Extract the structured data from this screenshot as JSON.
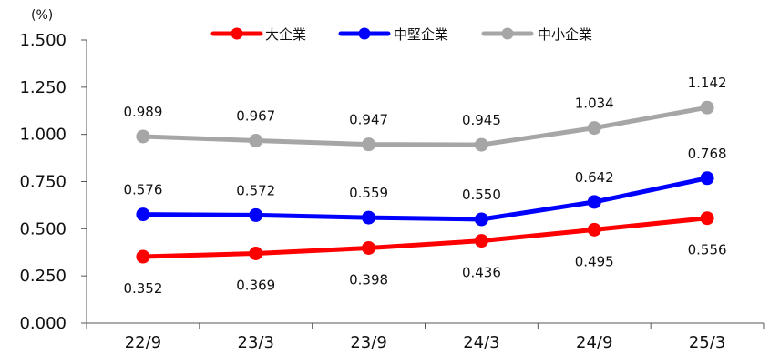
{
  "chart_data": {
    "type": "line",
    "unit_label": "(%)",
    "categories": [
      "22/9",
      "23/3",
      "23/9",
      "24/3",
      "24/9",
      "25/3"
    ],
    "ylim": [
      0,
      1.5
    ],
    "yticks": [
      "0.000",
      "0.250",
      "0.500",
      "0.750",
      "1.000",
      "1.250",
      "1.500"
    ],
    "ytick_values": [
      0,
      0.25,
      0.5,
      0.75,
      1.0,
      1.25,
      1.5
    ],
    "legend_position": "top",
    "grid": false,
    "series": [
      {
        "name": "大企業",
        "color": "#ff0000",
        "values": [
          0.352,
          0.369,
          0.398,
          0.436,
          0.495,
          0.556
        ],
        "labels": [
          "0.352",
          "0.369",
          "0.398",
          "0.436",
          "0.495",
          "0.556"
        ],
        "label_side": "below"
      },
      {
        "name": "中堅企業",
        "color": "#0000ff",
        "values": [
          0.576,
          0.572,
          0.559,
          0.55,
          0.642,
          0.768
        ],
        "labels": [
          "0.576",
          "0.572",
          "0.559",
          "0.550",
          "0.642",
          "0.768"
        ],
        "label_side": "above"
      },
      {
        "name": "中小企業",
        "color": "#a6a6a6",
        "values": [
          0.989,
          0.967,
          0.947,
          0.945,
          1.034,
          1.142
        ],
        "labels": [
          "0.989",
          "0.967",
          "0.947",
          "0.945",
          "1.034",
          "1.142"
        ],
        "label_side": "above"
      }
    ]
  }
}
